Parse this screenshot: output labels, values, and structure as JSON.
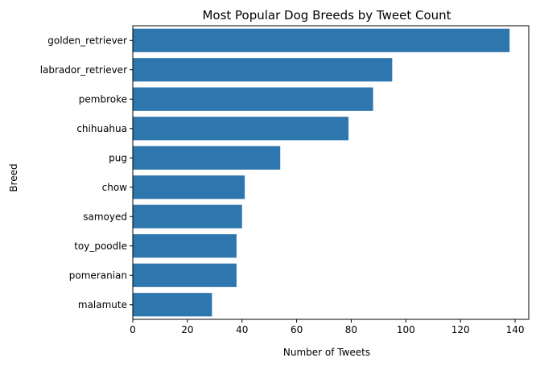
{
  "chart_data": {
    "type": "bar",
    "orientation": "horizontal",
    "title": "Most Popular Dog Breeds by Tweet Count",
    "xlabel": "Number of Tweets",
    "ylabel": "Breed",
    "categories": [
      "golden_retriever",
      "labrador_retriever",
      "pembroke",
      "chihuahua",
      "pug",
      "chow",
      "samoyed",
      "toy_poodle",
      "pomeranian",
      "malamute"
    ],
    "values": [
      138,
      95,
      88,
      79,
      54,
      41,
      40,
      38,
      38,
      29
    ],
    "xlim": [
      0,
      145
    ],
    "xticks": [
      0,
      20,
      40,
      60,
      80,
      100,
      120,
      140
    ],
    "grid": false,
    "legend": "none",
    "bar_color": "#2e76ae"
  }
}
